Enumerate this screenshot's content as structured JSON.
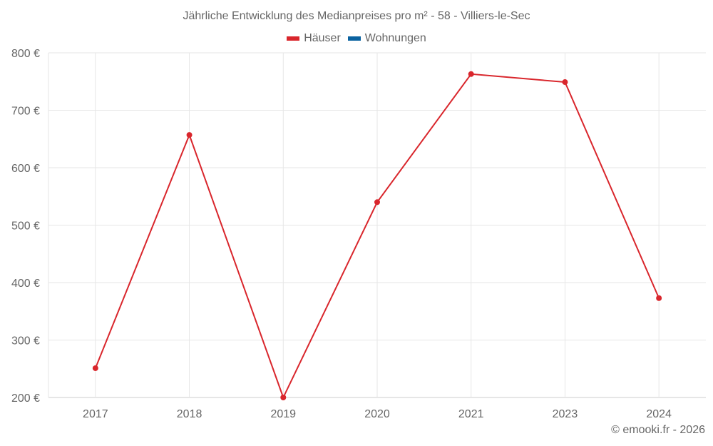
{
  "chart": {
    "title": "Jährliche Entwicklung des Medianpreises pro m² - 58 - Villiers-le-Sec",
    "credit": "© emooki.fr - 2026",
    "legend": [
      {
        "label": "Häuser",
        "color": "#d9262c"
      },
      {
        "label": "Wohnungen",
        "color": "#0a62a0"
      }
    ]
  },
  "chart_data": {
    "type": "line",
    "title": "Jährliche Entwicklung des Medianpreises pro m² - 58 - Villiers-le-Sec",
    "xlabel": "",
    "ylabel": "",
    "categories": [
      "2017",
      "2018",
      "2019",
      "2020",
      "2021",
      "2023",
      "2024"
    ],
    "series": [
      {
        "name": "Häuser",
        "color": "#d9262c",
        "values": [
          251,
          657,
          200,
          540,
          763,
          749,
          373
        ]
      },
      {
        "name": "Wohnungen",
        "color": "#0a62a0",
        "values": []
      }
    ],
    "yticks": [
      "200 €",
      "300 €",
      "400 €",
      "500 €",
      "600 €",
      "700 €",
      "800 €"
    ],
    "ylim": [
      200,
      800
    ],
    "grid": true,
    "legend_position": "top"
  }
}
